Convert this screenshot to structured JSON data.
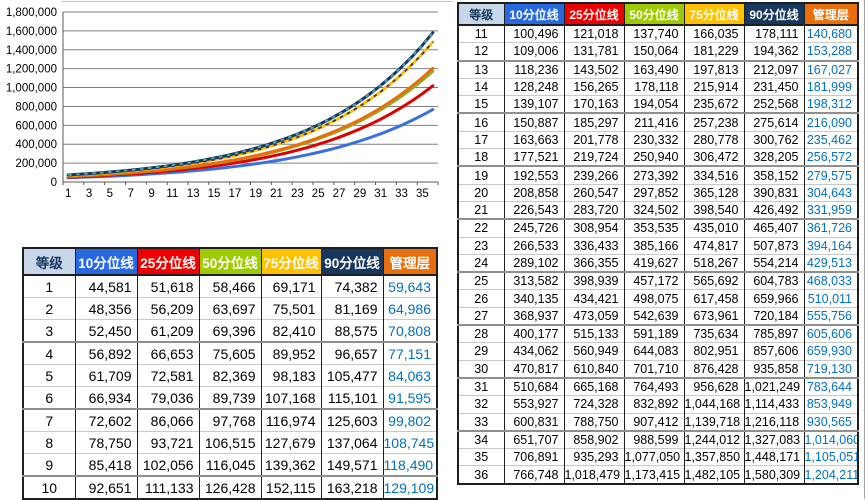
{
  "chart_data": {
    "type": "line",
    "title": "",
    "xlabel": "",
    "ylabel": "",
    "x": [
      1,
      2,
      3,
      4,
      5,
      6,
      7,
      8,
      9,
      10,
      11,
      12,
      13,
      14,
      15,
      16,
      17,
      18,
      19,
      20,
      21,
      22,
      23,
      24,
      25,
      26,
      27,
      28,
      29,
      30,
      31,
      32,
      33,
      34,
      35,
      36
    ],
    "ylim": [
      0,
      1800000
    ],
    "y_tick_step": 200000,
    "y_axis_labels": [
      "1,800,000",
      "1,600,000",
      "1,400,000",
      "1,200,000",
      "1,000,000",
      "800,000",
      "600,000",
      "400,000",
      "200,000",
      "0"
    ],
    "x_axis_labels": [
      "1",
      "3",
      "5",
      "7",
      "9",
      "11",
      "13",
      "15",
      "17",
      "19",
      "21",
      "23",
      "25",
      "27",
      "29",
      "31",
      "33",
      "35"
    ],
    "grid": true,
    "legend": "none",
    "draw_order": [
      "p10",
      "p25",
      "p50",
      "mgmt",
      "p75",
      "p90"
    ],
    "series": [
      {
        "key": "p10",
        "name": "10分位线",
        "color": "#3A6FE1",
        "values": [
          44581,
          48356,
          52450,
          56892,
          61709,
          66934,
          72602,
          78750,
          85418,
          92651,
          100496,
          109006,
          118236,
          128248,
          139107,
          150887,
          163663,
          177521,
          192553,
          208858,
          226543,
          245726,
          266533,
          289102,
          313582,
          340135,
          368937,
          400177,
          434062,
          470817,
          510684,
          553927,
          600831,
          651707,
          706891,
          766748
        ]
      },
      {
        "key": "p25",
        "name": "25分位线",
        "color": "#E00000",
        "values": [
          51618,
          56209,
          61209,
          66653,
          72581,
          79036,
          86066,
          93721,
          102056,
          111133,
          121018,
          131781,
          143502,
          156265,
          170163,
          185297,
          201778,
          219724,
          239266,
          260547,
          283720,
          308954,
          336433,
          366355,
          398939,
          434421,
          473059,
          515133,
          560949,
          610840,
          665168,
          724328,
          788750,
          858902,
          935293,
          1018479
        ]
      },
      {
        "key": "p50",
        "name": "50分位线",
        "color": "#84B42A",
        "values": [
          58466,
          63697,
          69396,
          75605,
          82369,
          89739,
          97768,
          106515,
          116045,
          126428,
          137740,
          150064,
          163490,
          178118,
          194054,
          211416,
          230332,
          250940,
          273392,
          297852,
          324502,
          353535,
          385166,
          419627,
          457172,
          498075,
          542639,
          591189,
          644083,
          701710,
          764493,
          832892,
          907412,
          988599,
          1077050,
          1173415
        ]
      },
      {
        "key": "p75",
        "name": "75分位线",
        "color": "#FFC000",
        "overlay_dash_color": "#413366",
        "values": [
          69171,
          75501,
          82410,
          89952,
          98183,
          107168,
          116974,
          127679,
          139362,
          152115,
          166035,
          181229,
          197813,
          215914,
          235672,
          257238,
          280778,
          306472,
          334516,
          365128,
          398540,
          435010,
          474817,
          518267,
          565692,
          617458,
          673961,
          735634,
          802951,
          876428,
          956628,
          1044168,
          1139718,
          1244012,
          1357850,
          1482105
        ]
      },
      {
        "key": "p90",
        "name": "90分位线",
        "color": "#17375E",
        "overlay_dash_color": "#4BACC6",
        "values": [
          74382,
          81169,
          88575,
          96657,
          105477,
          115101,
          125603,
          137064,
          149571,
          163218,
          178111,
          194362,
          212097,
          231450,
          252568,
          275614,
          300762,
          328205,
          358152,
          390831,
          426492,
          465407,
          507873,
          554214,
          604783,
          659966,
          720184,
          785897,
          857606,
          935858,
          1021249,
          1114433,
          1216118,
          1327083,
          1448171,
          1580309
        ]
      },
      {
        "key": "mgmt",
        "name": "管理层",
        "color": "#E7700D",
        "values": [
          59643,
          64986,
          70808,
          77151,
          84063,
          91595,
          99802,
          108745,
          118490,
          129109,
          140680,
          153288,
          167027,
          181999,
          198312,
          216090,
          235462,
          256572,
          279575,
          304643,
          331959,
          361726,
          394164,
          429513,
          468033,
          510011,
          555756,
          605606,
          659930,
          719130,
          783644,
          853949,
          930565,
          1014060,
          1105051,
          1204211
        ]
      }
    ]
  },
  "tables": {
    "columns": [
      {
        "key": "level",
        "label": "等级",
        "bg": "#C8D6EA",
        "fg": "#17375E"
      },
      {
        "key": "p10",
        "label": "10分位线",
        "bg": "#2869E1",
        "fg": "#FFFFFF"
      },
      {
        "key": "p25",
        "label": "25分位线",
        "bg": "#EE0000",
        "fg": "#FFFFFF"
      },
      {
        "key": "p50",
        "label": "50分位线",
        "bg": "#9BCB00",
        "fg": "#FFFFFF"
      },
      {
        "key": "p75",
        "label": "75分位线",
        "bg": "#FFC000",
        "fg": "#FFFFFF"
      },
      {
        "key": "p90",
        "label": "90分位线",
        "bg": "#17375E",
        "fg": "#FFFFFF"
      },
      {
        "key": "mgmt",
        "label": "管理层",
        "bg": "#E7700D",
        "fg": "#FFFFFF"
      }
    ],
    "mgmt_value_color": "#0070C0",
    "left_table_levels": [
      1,
      10
    ],
    "right_table_levels": [
      11,
      36
    ]
  }
}
